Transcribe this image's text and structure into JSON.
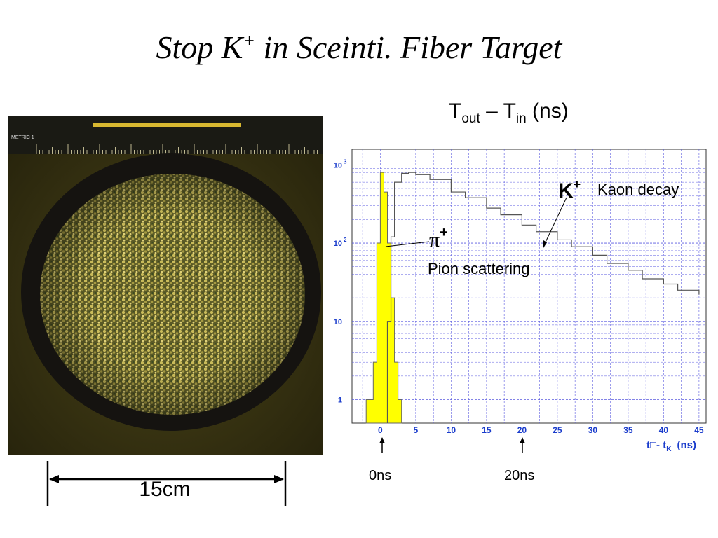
{
  "slide": {
    "title_main": "Stop K",
    "title_sup": "+",
    "title_rest": " in Sceinti. Fiber Target"
  },
  "photo": {
    "ruler_label": "METRIC 1",
    "scale_label": "15cm",
    "colors": {
      "background": "#2e2a0f",
      "ring": "#141210",
      "fiber": "#9a8f3a",
      "ruler": "#1a1a14",
      "ruler_bar": "#d8b830"
    }
  },
  "chart_data": {
    "type": "histogram",
    "title": {
      "T": "T",
      "out": "out",
      "dash": " – T",
      "in": "in",
      "unit": " (ns)"
    },
    "xlabel": "t□- t",
    "xlabel_sub": "K",
    "xlabel_unit": "(ns)",
    "x_ticks": [
      "0",
      "5",
      "10",
      "15",
      "20",
      "25",
      "30",
      "35",
      "40",
      "45"
    ],
    "y_ticks": [
      {
        "base": "1",
        "exp": ""
      },
      {
        "base": "10",
        "exp": ""
      },
      {
        "base": "10",
        "exp": "2"
      },
      {
        "base": "10",
        "exp": "3"
      }
    ],
    "xlim": [
      -4,
      46
    ],
    "ylim_log10": [
      -0.3,
      3.2
    ],
    "y_scale": "log",
    "grid": true,
    "series": [
      {
        "name": "",
        "color": "#ffff00",
        "fill": "#ffff00",
        "x": [
          -2,
          -1.5,
          -1,
          -0.5,
          0,
          0.5,
          1,
          1.5,
          2,
          2.5,
          3
        ],
        "y": [
          1,
          1,
          3,
          100,
          800,
          450,
          100,
          20,
          3,
          1,
          1
        ]
      },
      {
        "name": "",
        "color": "#555555",
        "fill": "none",
        "x": [
          1,
          1.5,
          2,
          3,
          4,
          5,
          7,
          10,
          12,
          15,
          17,
          20,
          22,
          25,
          27,
          30,
          32,
          35,
          37,
          40,
          42,
          45
        ],
        "y": [
          10,
          120,
          600,
          780,
          800,
          750,
          650,
          450,
          380,
          280,
          230,
          170,
          140,
          110,
          90,
          70,
          55,
          45,
          35,
          30,
          25,
          22
        ]
      }
    ],
    "annotations": {
      "kaon_symbol": "K",
      "kaon_sup": "+",
      "kaon_label": "Kaon decay",
      "pion_symbol": "π",
      "pion_sup": "+",
      "pion_label": "Pion scattering"
    },
    "markers": [
      "0ns",
      "20ns"
    ]
  }
}
